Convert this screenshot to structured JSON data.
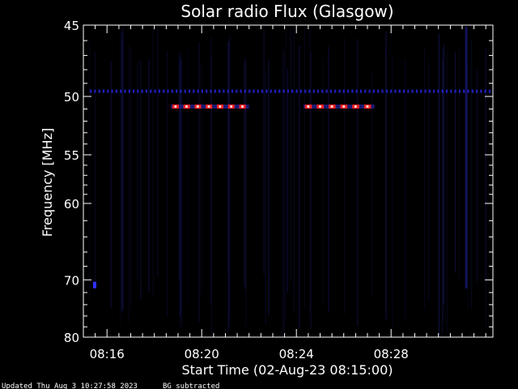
{
  "chart_data": {
    "type": "heatmap",
    "title": "Solar radio Flux (Glasgow)",
    "xlabel": "Start Time (02-Aug-23 08:15:00)",
    "ylabel": "Frequency [MHz]",
    "x_unit": "minutes after 08:15:00",
    "xlim": [
      0,
      17.3
    ],
    "ylim": [
      80,
      45
    ],
    "y_scale": "reciprocal",
    "x_ticks": [
      {
        "value": 1,
        "label": "08:16"
      },
      {
        "value": 5,
        "label": "08:20"
      },
      {
        "value": 9,
        "label": "08:24"
      },
      {
        "value": 13,
        "label": "08:28"
      }
    ],
    "y_ticks": [
      {
        "value": 45,
        "label": "45"
      },
      {
        "value": 50,
        "label": "50"
      },
      {
        "value": 55,
        "label": "55"
      },
      {
        "value": 60,
        "label": "60"
      },
      {
        "value": 70,
        "label": "70"
      },
      {
        "value": 80,
        "label": "80"
      }
    ],
    "colors": {
      "background": "#000000",
      "frame": "#ffffff",
      "interference": "#2020c0",
      "burst_edge": "#ff2020",
      "burst_core": "#ffd0d0",
      "streak": "#101040"
    },
    "features": [
      {
        "name": "continuous-line",
        "freq": 49.6,
        "x_start": 0,
        "x_end": 17.3
      },
      {
        "name": "burst-row-1",
        "freq": 50.8,
        "x_start": 3.7,
        "x_end": 7.0,
        "count": 7
      },
      {
        "name": "burst-row-2",
        "freq": 50.8,
        "x_start": 9.3,
        "x_end": 12.3,
        "count": 6
      },
      {
        "name": "blip",
        "freq": 70.8,
        "x": 0.48
      }
    ]
  },
  "footer": {
    "updated": "Updated Thu Aug  3 10:27:58 2023",
    "note": "BG subtracted"
  }
}
